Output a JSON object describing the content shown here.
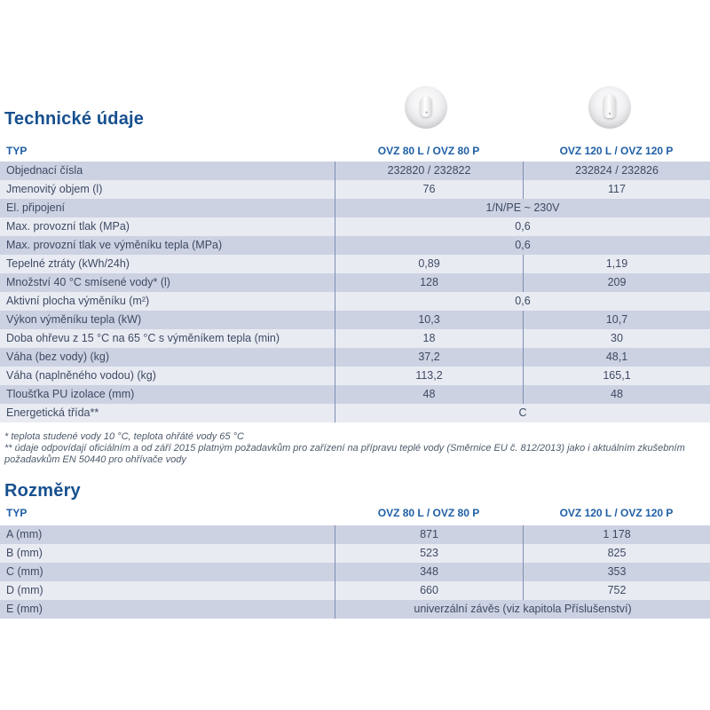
{
  "colors": {
    "heading": "#17508f",
    "table_header_text": "#1e5fa6",
    "row_dark": "#cdd2e2",
    "row_light": "#e9ebf3",
    "divider": "#7d8db4",
    "body_text": "#3d4a63",
    "footnote_text": "#4d5a6b"
  },
  "icons": {
    "left": "water-heater-80l-icon",
    "right": "water-heater-120l-icon"
  },
  "tech_section": {
    "title": "Technické údaje",
    "table": {
      "type_header": "TYP",
      "col1_header": "OVZ 80 L / OVZ 80 P",
      "col2_header": "OVZ 120 L / OVZ 120 P",
      "rows": [
        {
          "label": "Objednací čísla",
          "col1": "232820 / 232822",
          "col2": "232824 / 232826"
        },
        {
          "label": "Jmenovitý objem (l)",
          "col1": "76",
          "col2": "117"
        },
        {
          "label": "El. připojení",
          "span": "1/N/PE ~ 230V"
        },
        {
          "label": "Max. provozní tlak (MPa)",
          "span": "0,6"
        },
        {
          "label": "Max. provozní tlak ve výměníku tepla (MPa)",
          "span": "0,6"
        },
        {
          "label": "Tepelné ztráty (kWh/24h)",
          "col1": "0,89",
          "col2": "1,19"
        },
        {
          "label": "Množství 40 °C smísené vody* (l)",
          "col1": "128",
          "col2": "209"
        },
        {
          "label": "Aktivní plocha výměníku (m²)",
          "span": "0,6"
        },
        {
          "label": "Výkon výměníku tepla (kW)",
          "col1": "10,3",
          "col2": "10,7"
        },
        {
          "label": "Doba ohřevu z 15 °C na 65 °C s výměníkem tepla (min)",
          "col1": "18",
          "col2": "30"
        },
        {
          "label": "Váha (bez vody) (kg)",
          "col1": "37,2",
          "col2": "48,1"
        },
        {
          "label": "Váha (naplněného vodou) (kg)",
          "col1": "113,2",
          "col2": "165,1"
        },
        {
          "label": "Tloušťka PU izolace (mm)",
          "col1": "48",
          "col2": "48"
        },
        {
          "label": "Energetická třída**",
          "span": "C"
        }
      ]
    },
    "footnotes": [
      "* teplota studené vody 10 °C, teplota ohřáté vody 65 °C",
      "** údaje odpovídají oficiálním a od září 2015 platným požadavkům pro zařízení na přípravu teplé vody (Směrnice EU č. 812/2013) jako i aktuálním zkušebním požadavkům EN 50440 pro ohřívače vody"
    ]
  },
  "dim_section": {
    "title": "Rozměry",
    "table": {
      "type_header": "TYP",
      "col1_header": "OVZ 80 L / OVZ 80 P",
      "col2_header": "OVZ 120 L / OVZ 120 P",
      "rows": [
        {
          "label": "A (mm)",
          "col1": "871",
          "col2": "1 178"
        },
        {
          "label": "B (mm)",
          "col1": "523",
          "col2": "825"
        },
        {
          "label": "C (mm)",
          "col1": "348",
          "col2": "353"
        },
        {
          "label": "D (mm)",
          "col1": "660",
          "col2": "752"
        },
        {
          "label": "E (mm)",
          "span": "univerzální závěs (viz kapitola Příslušenství)"
        }
      ]
    }
  }
}
